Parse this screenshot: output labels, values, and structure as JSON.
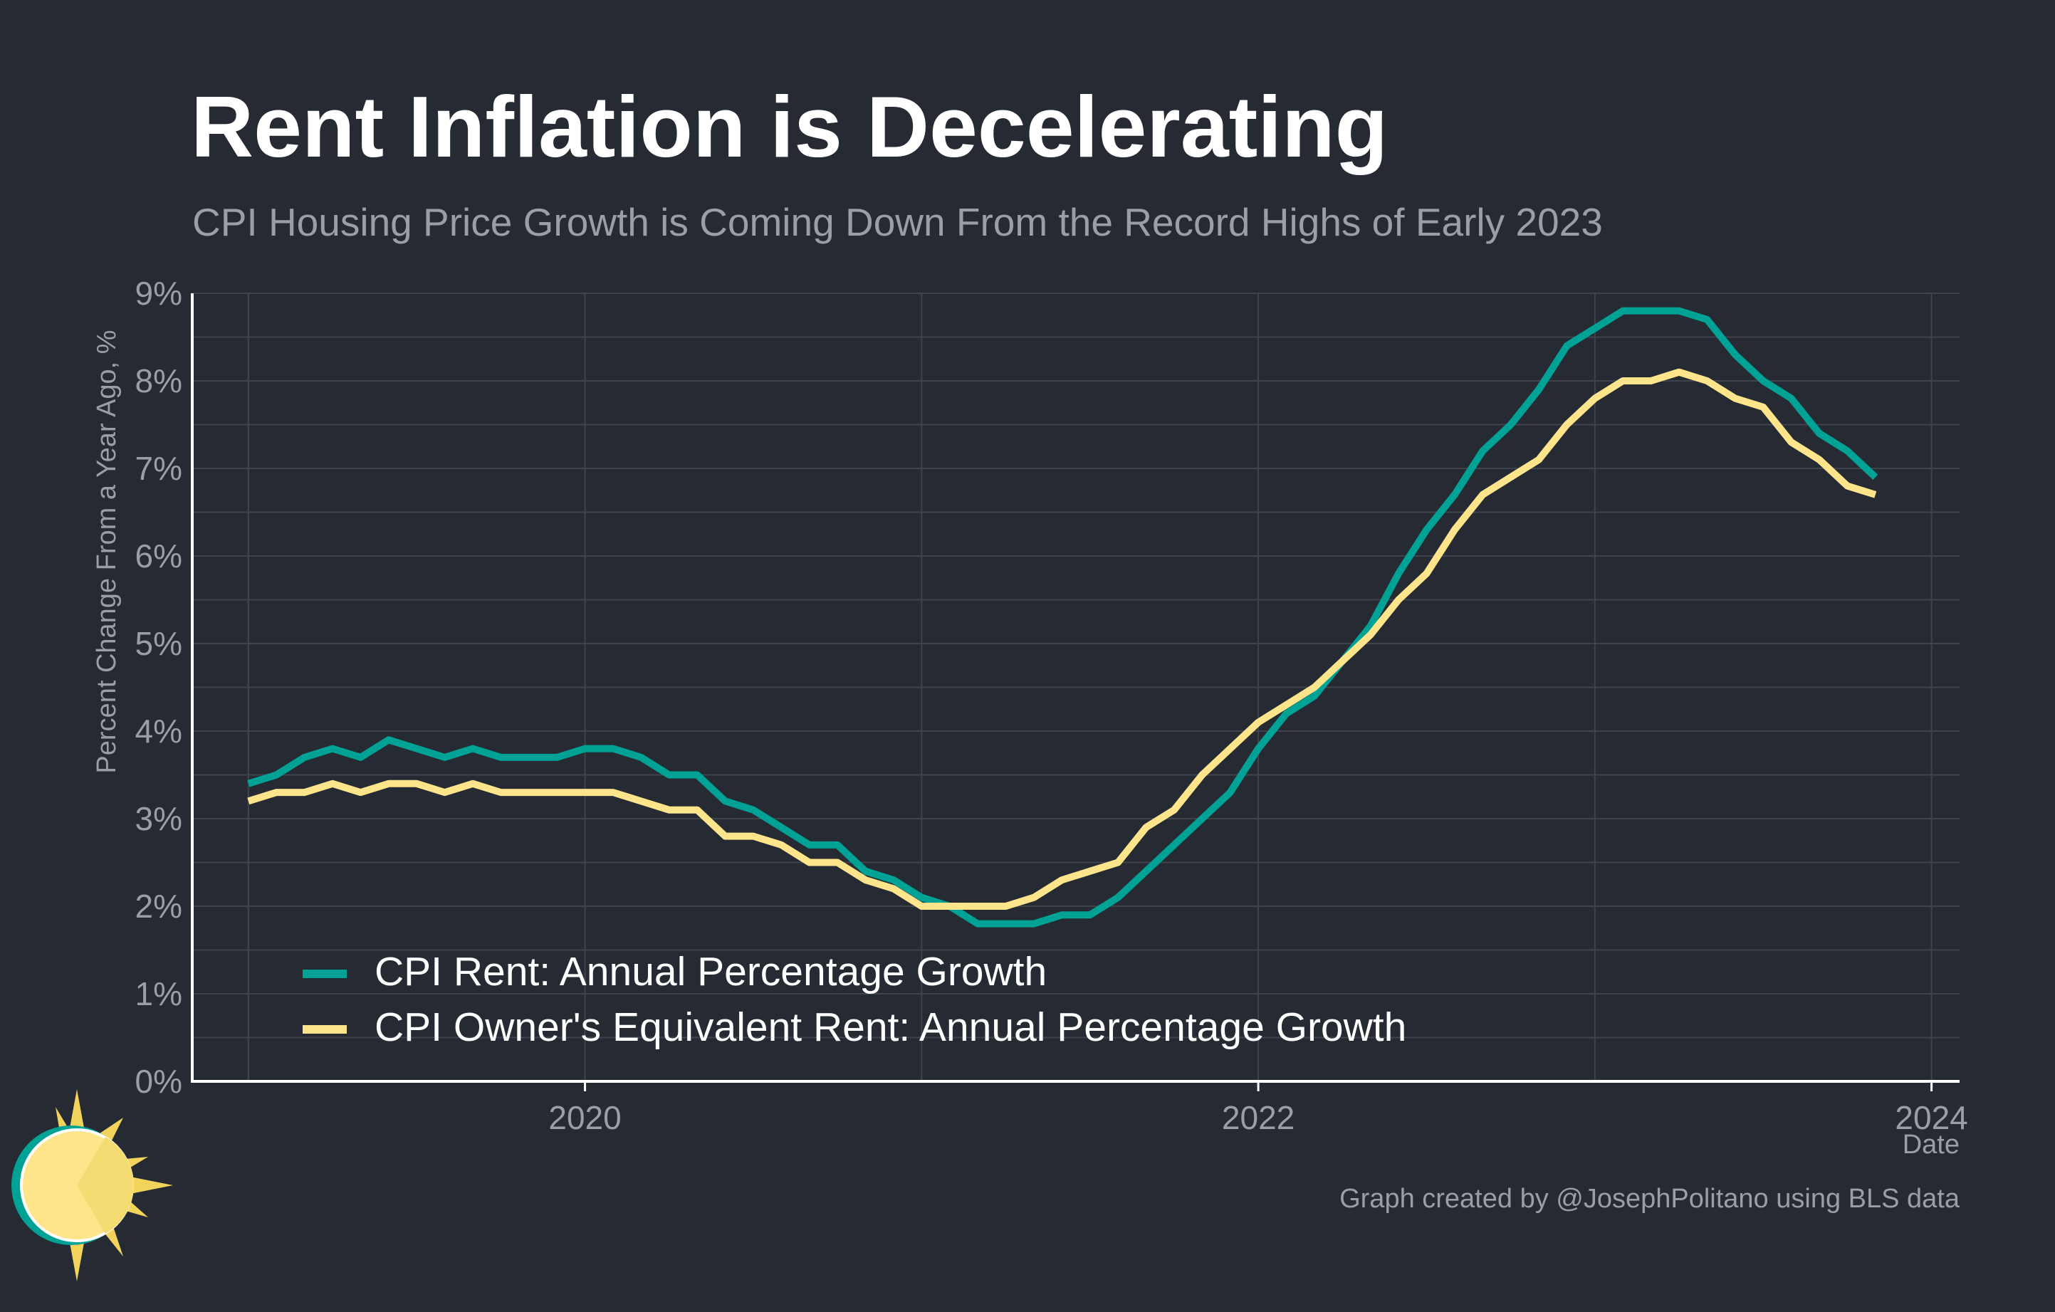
{
  "header": {
    "title": "Rent Inflation is Decelerating",
    "subtitle": "CPI Housing Price Growth is Coming Down From the Record Highs of Early 2023"
  },
  "footer": {
    "caption": "Graph created by @JosephPolitano using BLS data"
  },
  "colors": {
    "background": "#252a33",
    "rent": "#00a296",
    "oer": "#fee48a",
    "grid": "#3e434c",
    "axis": "#ffffff",
    "muted_text": "#9a9ea6"
  },
  "logo": {
    "icon": "sun-icon"
  },
  "chart_data": {
    "type": "line",
    "ylabel": "Percent Change From a Year Ago, %",
    "xlabel": "Date",
    "ylim": [
      0,
      9
    ],
    "yticks": [
      0,
      1,
      2,
      3,
      4,
      5,
      6,
      7,
      8,
      9
    ],
    "ytick_labels": [
      "0%",
      "1%",
      "2%",
      "3%",
      "4%",
      "5%",
      "6%",
      "7%",
      "8%",
      "9%"
    ],
    "xlim": [
      "2018-11-01",
      "2024-02-01"
    ],
    "xticks": [
      "2020-01-01",
      "2022-01-01",
      "2024-01-01"
    ],
    "xtick_labels": [
      "2020",
      "2022",
      "2024"
    ],
    "grid": true,
    "legend": "bottom-left",
    "x": [
      "2019-01",
      "2019-02",
      "2019-03",
      "2019-04",
      "2019-05",
      "2019-06",
      "2019-07",
      "2019-08",
      "2019-09",
      "2019-10",
      "2019-11",
      "2019-12",
      "2020-01",
      "2020-02",
      "2020-03",
      "2020-04",
      "2020-05",
      "2020-06",
      "2020-07",
      "2020-08",
      "2020-09",
      "2020-10",
      "2020-11",
      "2020-12",
      "2021-01",
      "2021-02",
      "2021-03",
      "2021-04",
      "2021-05",
      "2021-06",
      "2021-07",
      "2021-08",
      "2021-09",
      "2021-10",
      "2021-11",
      "2021-12",
      "2022-01",
      "2022-02",
      "2022-03",
      "2022-04",
      "2022-05",
      "2022-06",
      "2022-07",
      "2022-08",
      "2022-09",
      "2022-10",
      "2022-11",
      "2022-12",
      "2023-01",
      "2023-02",
      "2023-03",
      "2023-04",
      "2023-05",
      "2023-06",
      "2023-07",
      "2023-08",
      "2023-09",
      "2023-10",
      "2023-11"
    ],
    "series": [
      {
        "name": "CPI Rent: Annual Percentage Growth",
        "color": "#00a296",
        "values": [
          3.4,
          3.5,
          3.7,
          3.8,
          3.7,
          3.9,
          3.8,
          3.7,
          3.8,
          3.7,
          3.7,
          3.7,
          3.8,
          3.8,
          3.7,
          3.5,
          3.5,
          3.2,
          3.1,
          2.9,
          2.7,
          2.7,
          2.4,
          2.3,
          2.1,
          2.0,
          1.8,
          1.8,
          1.8,
          1.9,
          1.9,
          2.1,
          2.4,
          2.7,
          3.0,
          3.3,
          3.8,
          4.2,
          4.4,
          4.8,
          5.2,
          5.8,
          6.3,
          6.7,
          7.2,
          7.5,
          7.9,
          8.4,
          8.6,
          8.8,
          8.8,
          8.8,
          8.7,
          8.3,
          8.0,
          7.8,
          7.4,
          7.2,
          6.9
        ]
      },
      {
        "name": "CPI Owner's Equivalent Rent: Annual Percentage Growth",
        "color": "#fee48a",
        "values": [
          3.2,
          3.3,
          3.3,
          3.4,
          3.3,
          3.4,
          3.4,
          3.3,
          3.4,
          3.3,
          3.3,
          3.3,
          3.3,
          3.3,
          3.2,
          3.1,
          3.1,
          2.8,
          2.8,
          2.7,
          2.5,
          2.5,
          2.3,
          2.2,
          2.0,
          2.0,
          2.0,
          2.0,
          2.1,
          2.3,
          2.4,
          2.5,
          2.9,
          3.1,
          3.5,
          3.8,
          4.1,
          4.3,
          4.5,
          4.8,
          5.1,
          5.5,
          5.8,
          6.3,
          6.7,
          6.9,
          7.1,
          7.5,
          7.8,
          8.0,
          8.0,
          8.1,
          8.0,
          7.8,
          7.7,
          7.3,
          7.1,
          6.8,
          6.7
        ]
      }
    ]
  }
}
